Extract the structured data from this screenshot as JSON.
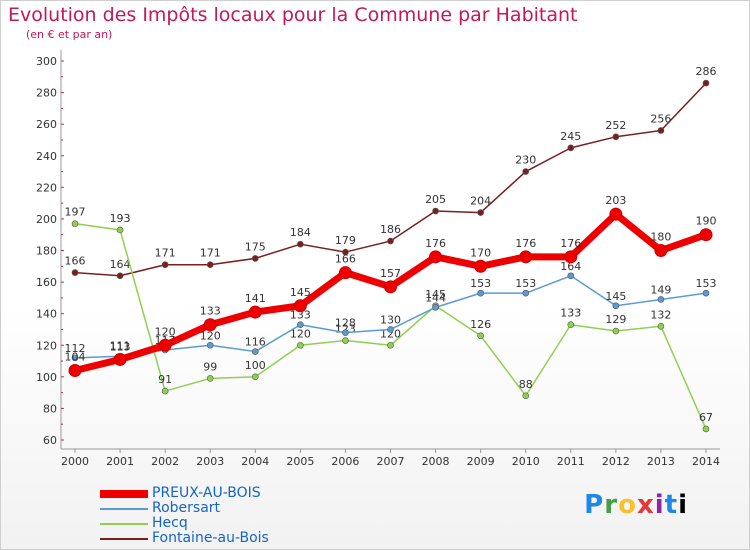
{
  "header": {
    "title": "Evolution des Impôts locaux pour la Commune par Habitant",
    "subtitle": "(en € et par an)"
  },
  "brand": {
    "text": "Proxiti"
  },
  "chart_data": {
    "type": "line",
    "x": [
      "2000",
      "2001",
      "2002",
      "2003",
      "2004",
      "2005",
      "2006",
      "2007",
      "2008",
      "2009",
      "2010",
      "2011",
      "2012",
      "2013",
      "2014"
    ],
    "ylim": [
      60,
      300
    ],
    "yticks": [
      60,
      80,
      100,
      120,
      140,
      160,
      180,
      200,
      220,
      240,
      260,
      280,
      300
    ],
    "grid": false,
    "legend_position": "bottom-left",
    "series": [
      {
        "name": "PREUX-AU-BOIS",
        "color": "#ee0000",
        "emphasis": true,
        "values": [
          104,
          111,
          120,
          133,
          141,
          145,
          166,
          157,
          176,
          170,
          176,
          176,
          203,
          180,
          190
        ]
      },
      {
        "name": "Robersart",
        "color": "#5b9bd5",
        "values": [
          112,
          113,
          117,
          120,
          116,
          133,
          128,
          130,
          144,
          153,
          153,
          164,
          145,
          149,
          153
        ]
      },
      {
        "name": "Hecq",
        "color": "#8fd14f",
        "values": [
          197,
          193,
          91,
          99,
          100,
          120,
          123,
          120,
          145,
          126,
          88,
          133,
          129,
          132,
          67
        ]
      },
      {
        "name": "Fontaine-au-Bois",
        "color": "#7b1e1e",
        "values": [
          166,
          164,
          171,
          171,
          175,
          184,
          179,
          186,
          205,
          204,
          230,
          245,
          252,
          256,
          286
        ]
      }
    ]
  }
}
